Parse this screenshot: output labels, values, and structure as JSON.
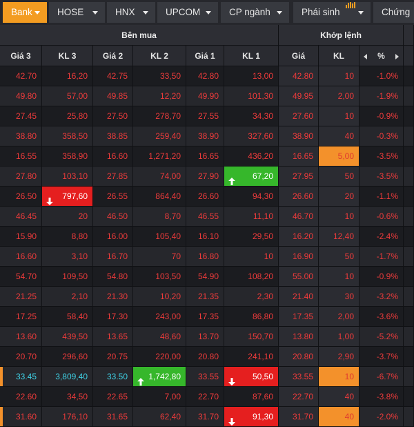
{
  "tabs": [
    {
      "label": "Bank",
      "active": true
    },
    {
      "label": "HOSE"
    },
    {
      "label": "HNX"
    },
    {
      "label": "UPCOM"
    },
    {
      "label": "CP ngành"
    },
    {
      "label": "Phái sinh",
      "icon": "bar-chart-icon"
    },
    {
      "label": "Chứng"
    }
  ],
  "headers": {
    "buy_group": "Bên mua",
    "match_group": "Khớp lệnh",
    "columns": [
      "Giá 3",
      "KL 3",
      "Giá 2",
      "KL 2",
      "Giá 1",
      "KL 1",
      "Giá",
      "KL",
      "%"
    ]
  },
  "colors": {
    "red": "#ee3b3b",
    "cyan": "#3fd0e4",
    "orange_bg": "#f3912b",
    "red_bg": "#e51f1f",
    "green_bg": "#36b72b",
    "row_dark": "#1b1c20",
    "row_light": "#26272c",
    "header": "#2d2e34"
  },
  "rows": [
    [
      "42.70",
      "16,20",
      "42.75",
      "33,50",
      "42.80",
      "13,00",
      "42.80",
      "10",
      "-1.0%"
    ],
    [
      "49.80",
      "57,00",
      "49.85",
      "12,20",
      "49.90",
      "101,30",
      "49.95",
      "2,00",
      "-1.9%"
    ],
    [
      "27.45",
      "25,80",
      "27.50",
      "278,70",
      "27.55",
      "34,30",
      "27.60",
      "10",
      "-0.9%"
    ],
    [
      "38.80",
      "358,50",
      "38.85",
      "259,40",
      "38.90",
      "327,60",
      "38.90",
      "40",
      "-0.3%"
    ],
    [
      "16.55",
      "358,90",
      "16.60",
      "1,271,20",
      "16.65",
      "436,20",
      "16.65",
      "5,00",
      "-3.5%"
    ],
    [
      "27.80",
      "103,10",
      "27.85",
      "74,00",
      "27.90",
      "67,20",
      "27.95",
      "50",
      "-3.5%"
    ],
    [
      "26.50",
      "797,60",
      "26.55",
      "864,40",
      "26.60",
      "94,30",
      "26.60",
      "20",
      "-1.1%"
    ],
    [
      "46.45",
      "20",
      "46.50",
      "8,70",
      "46.55",
      "11,10",
      "46.70",
      "10",
      "-0.6%"
    ],
    [
      "15.90",
      "8,80",
      "16.00",
      "105,40",
      "16.10",
      "29,50",
      "16.20",
      "12,40",
      "-2.4%"
    ],
    [
      "16.60",
      "3,10",
      "16.70",
      "70",
      "16.80",
      "10",
      "16.90",
      "50",
      "-1.7%"
    ],
    [
      "54.70",
      "109,50",
      "54.80",
      "103,50",
      "54.90",
      "108,20",
      "55.00",
      "10",
      "-0.9%"
    ],
    [
      "21.25",
      "2,10",
      "21.30",
      "10,20",
      "21.35",
      "2,30",
      "21.40",
      "30",
      "-3.2%"
    ],
    [
      "17.25",
      "58,40",
      "17.30",
      "243,00",
      "17.35",
      "86,80",
      "17.35",
      "2,00",
      "-3.6%"
    ],
    [
      "13.60",
      "439,50",
      "13.65",
      "48,60",
      "13.70",
      "150,70",
      "13.80",
      "1,00",
      "-5.2%"
    ],
    [
      "20.70",
      "296,60",
      "20.75",
      "220,00",
      "20.80",
      "241,10",
      "20.80",
      "2,90",
      "-3.7%"
    ],
    [
      "33.45",
      "3,809,40",
      "33.50",
      "1,742,80",
      "33.55",
      "50,50",
      "33.55",
      "10",
      "-6.7%"
    ],
    [
      "22.60",
      "34,50",
      "22.65",
      "7,00",
      "22.70",
      "87,60",
      "22.70",
      "40",
      "-3.8%"
    ],
    [
      "31.60",
      "176,10",
      "31.65",
      "62,40",
      "31.70",
      "91,30",
      "31.70",
      "40",
      "-2.0%"
    ]
  ],
  "highlights": [
    {
      "row": 4,
      "col": 7,
      "style": "orange"
    },
    {
      "row": 5,
      "col": 5,
      "style": "green",
      "arrow": "up"
    },
    {
      "row": 6,
      "col": 1,
      "style": "red",
      "arrow": "down"
    },
    {
      "row": 15,
      "col": 3,
      "style": "green",
      "arrow": "up"
    },
    {
      "row": 15,
      "col": 5,
      "style": "red",
      "arrow": "down"
    },
    {
      "row": 15,
      "col": 7,
      "style": "orange"
    },
    {
      "row": 17,
      "col": 5,
      "style": "red",
      "arrow": "down"
    },
    {
      "row": 17,
      "col": 7,
      "style": "orange"
    }
  ],
  "cyan_rows": [
    15
  ],
  "edge_marker_rows": [
    15,
    17
  ]
}
